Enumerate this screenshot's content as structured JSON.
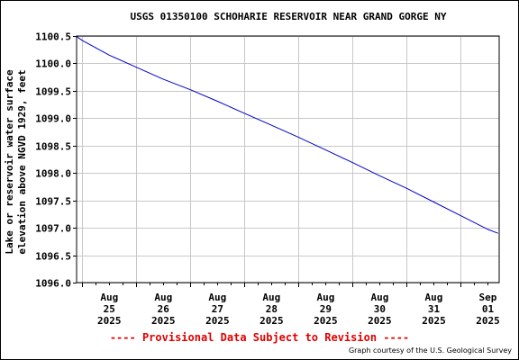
{
  "page": {
    "provisional_note": "---- Provisional Data Subject to Revision ----",
    "courtesy": "Graph courtesy of the U.S. Geological Survey"
  },
  "chart_data": {
    "type": "line",
    "title": "USGS 01350100 SCHOHARIE RESERVOIR NEAR GRAND GORGE NY",
    "ylabel_lines": [
      "Lake or reservoir water surface",
      "elevation above NGVD 1929, feet"
    ],
    "xlabel": "",
    "ylim": [
      1096.0,
      1100.5
    ],
    "yticks": [
      "1096.0",
      "1096.5",
      "1097.0",
      "1097.5",
      "1098.0",
      "1098.5",
      "1099.0",
      "1099.5",
      "1100.0",
      "1100.5"
    ],
    "xlim": [
      "2025-08-24 21:30",
      "2025-09-01 17:00"
    ],
    "xticks": [
      {
        "date": "2025-08-25",
        "lines": [
          "Aug",
          "25",
          "2025"
        ]
      },
      {
        "date": "2025-08-26",
        "lines": [
          "Aug",
          "26",
          "2025"
        ]
      },
      {
        "date": "2025-08-27",
        "lines": [
          "Aug",
          "27",
          "2025"
        ]
      },
      {
        "date": "2025-08-28",
        "lines": [
          "Aug",
          "28",
          "2025"
        ]
      },
      {
        "date": "2025-08-29",
        "lines": [
          "Aug",
          "29",
          "2025"
        ]
      },
      {
        "date": "2025-08-30",
        "lines": [
          "Aug",
          "30",
          "2025"
        ]
      },
      {
        "date": "2025-08-31",
        "lines": [
          "Aug",
          "31",
          "2025"
        ]
      },
      {
        "date": "2025-09-01",
        "lines": [
          "Sep",
          "01",
          "2025"
        ]
      }
    ],
    "grid": true,
    "series": [
      {
        "color": "#0000cc",
        "points": [
          [
            "2025-08-24 21:30",
            1100.49
          ],
          [
            "2025-08-25 00:00",
            1100.42
          ],
          [
            "2025-08-25 12:00",
            1100.15
          ],
          [
            "2025-08-26 00:00",
            1099.93
          ],
          [
            "2025-08-26 12:00",
            1099.71
          ],
          [
            "2025-08-27 00:00",
            1099.52
          ],
          [
            "2025-08-27 12:00",
            1099.31
          ],
          [
            "2025-08-28 00:00",
            1099.09
          ],
          [
            "2025-08-28 12:00",
            1098.87
          ],
          [
            "2025-08-29 00:00",
            1098.65
          ],
          [
            "2025-08-29 12:00",
            1098.42
          ],
          [
            "2025-08-30 00:00",
            1098.19
          ],
          [
            "2025-08-30 12:00",
            1097.95
          ],
          [
            "2025-08-31 00:00",
            1097.72
          ],
          [
            "2025-08-31 12:00",
            1097.47
          ],
          [
            "2025-09-01 00:00",
            1097.22
          ],
          [
            "2025-09-01 12:00",
            1096.97
          ],
          [
            "2025-09-01 16:30",
            1096.9
          ]
        ]
      }
    ]
  }
}
